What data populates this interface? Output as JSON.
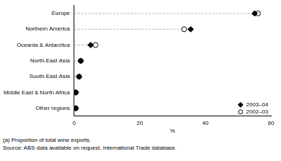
{
  "chart_data": {
    "type": "dot",
    "orientation": "horizontal",
    "categories": [
      "Europe",
      "Northern America",
      "Oceania & Antarctica",
      "North-East Asia",
      "South-East Asia",
      "Middle East & North Africa",
      "Other regions"
    ],
    "series": [
      {
        "name": "2003–04",
        "color": "#000000",
        "marker": "diamond",
        "values": [
          55,
          35.5,
          5,
          2,
          1.5,
          0.5,
          0.5
        ]
      },
      {
        "name": "2002–03",
        "color": "#000000",
        "marker": "open_circle",
        "values": [
          56,
          33.5,
          6.5,
          2,
          1.5,
          0.5,
          0.5
        ]
      }
    ],
    "x_label": "%",
    "xlim": [
      0,
      60
    ],
    "xticks": [
      0,
      20,
      40,
      60
    ],
    "grid": false,
    "legend": "lower right",
    "line_style": "dashed",
    "annotations": [
      "(a) Proportion of total wine exports.",
      "Source: ABS data available on request, International Trade database."
    ]
  }
}
